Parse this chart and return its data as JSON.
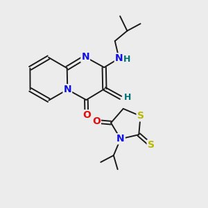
{
  "background_color": "#ececec",
  "bond_color": "#1a1a1a",
  "atom_colors": {
    "N": "#1010e0",
    "O": "#e01010",
    "S": "#b8b800",
    "H": "#007070",
    "C": "#1a1a1a"
  },
  "lw": 1.4,
  "fs": 10,
  "fs_small": 9,
  "xlim": [
    0,
    10
  ],
  "ylim": [
    0,
    10
  ]
}
